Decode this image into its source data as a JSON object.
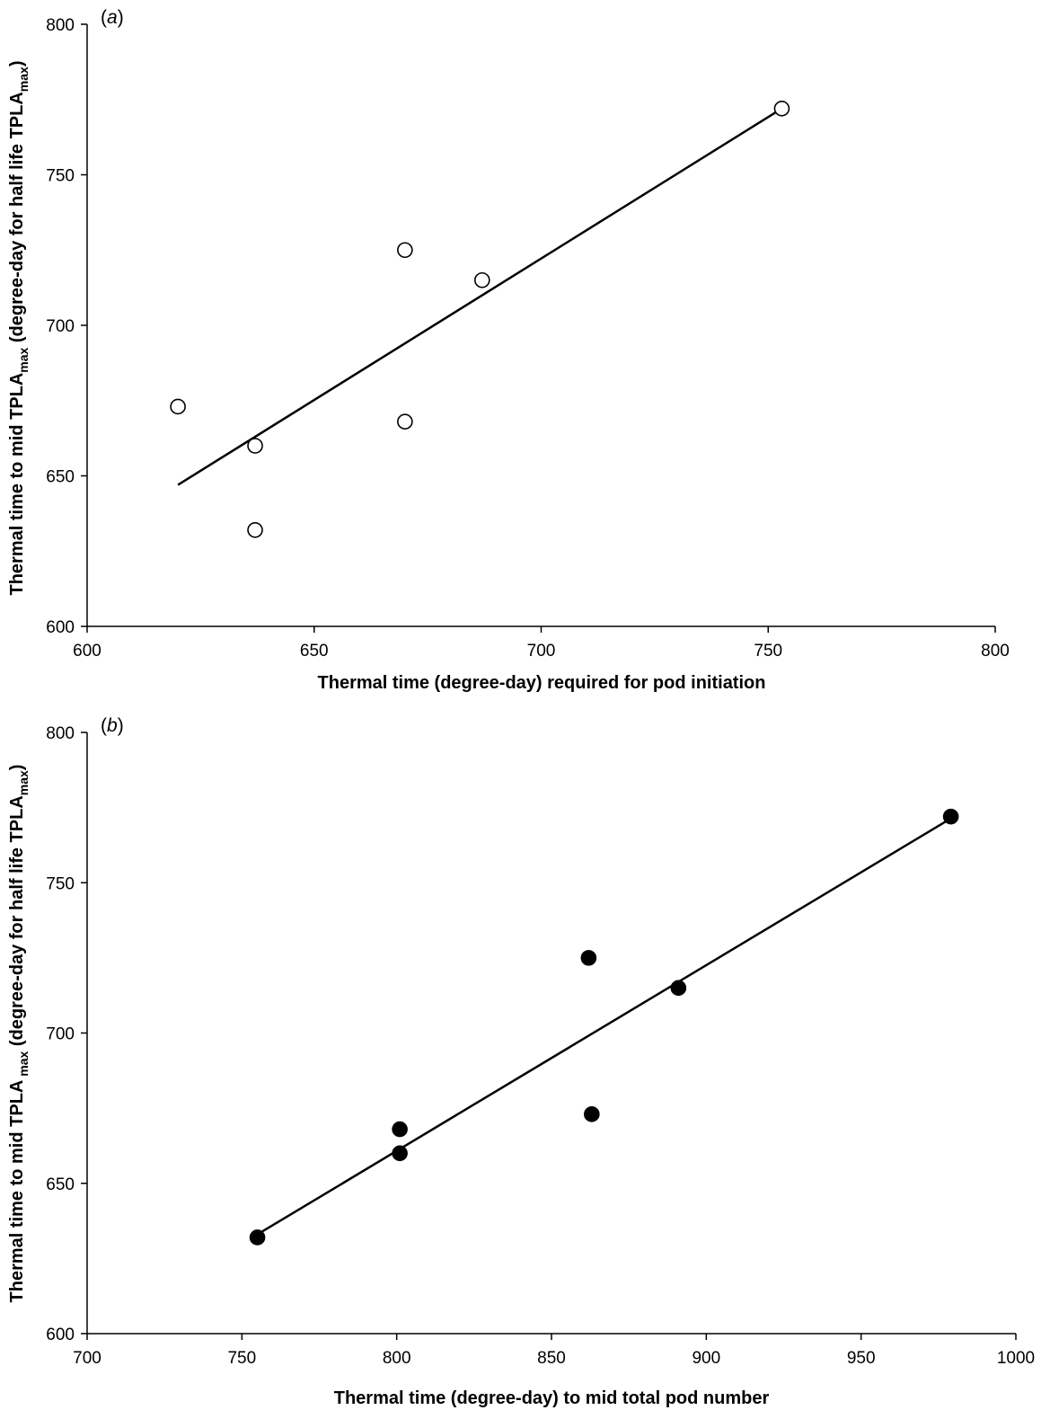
{
  "chart_data": [
    {
      "type": "scatter",
      "panel_label_prefix": "(",
      "panel_label_letter": "a",
      "panel_label_suffix": ")",
      "xlabel": "Thermal time (degree-day) required for pod initiation",
      "ylabel_parts": {
        "pre": "Thermal time to mid TPLA",
        "sub1": "max",
        "mid": " (degree-day for half life TPLA",
        "sub2": "max",
        "post": ")"
      },
      "xlim": [
        600,
        800
      ],
      "ylim": [
        600,
        800
      ],
      "xticks": [
        600,
        650,
        700,
        750,
        800
      ],
      "yticks": [
        600,
        650,
        700,
        750,
        800
      ],
      "marker": "open-circle",
      "series": [
        {
          "points": [
            {
              "x": 620,
              "y": 673
            },
            {
              "x": 637,
              "y": 660
            },
            {
              "x": 637,
              "y": 632
            },
            {
              "x": 670,
              "y": 725
            },
            {
              "x": 670,
              "y": 668
            },
            {
              "x": 687,
              "y": 715
            },
            {
              "x": 753,
              "y": 772
            }
          ]
        }
      ],
      "trendline": {
        "x1": 620,
        "y1": 647,
        "x2": 753,
        "y2": 772
      }
    },
    {
      "type": "scatter",
      "panel_label_prefix": "(",
      "panel_label_letter": "b",
      "panel_label_suffix": ")",
      "xlabel": "Thermal time (degree-day) to mid total pod number",
      "ylabel_parts": {
        "pre": "Thermal time to mid TPLA",
        "sub1": " max",
        "mid": " (degree-day for half life TPLA",
        "sub2": "max",
        "post": ")"
      },
      "xlim": [
        700,
        1000
      ],
      "ylim": [
        600,
        800
      ],
      "xticks": [
        700,
        750,
        800,
        850,
        900,
        950,
        1000
      ],
      "yticks": [
        600,
        650,
        700,
        750,
        800
      ],
      "marker": "filled-circle",
      "series": [
        {
          "points": [
            {
              "x": 755,
              "y": 632
            },
            {
              "x": 801,
              "y": 668
            },
            {
              "x": 801,
              "y": 660
            },
            {
              "x": 862,
              "y": 725
            },
            {
              "x": 863,
              "y": 673
            },
            {
              "x": 891,
              "y": 715
            },
            {
              "x": 979,
              "y": 772
            }
          ]
        }
      ],
      "trendline": {
        "x1": 755,
        "y1": 633,
        "x2": 980,
        "y2": 772
      }
    }
  ]
}
